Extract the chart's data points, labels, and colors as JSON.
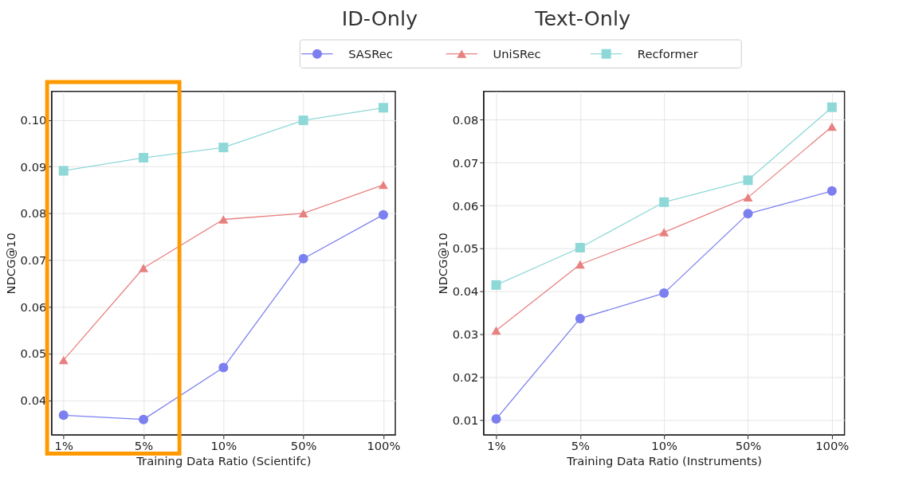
{
  "chart_data": [
    {
      "type": "line",
      "annotations": [
        "ID-Only"
      ],
      "categories": [
        "1%",
        "5%",
        "10%",
        "50%",
        "100%"
      ],
      "xlabel": "Training Data Ratio (Scientifc)",
      "ylabel": "NDCG@10",
      "series": [
        {
          "name": "SASRec",
          "color": "#7b7fef",
          "marker": "circle",
          "values": [
            0.0368,
            0.0359,
            0.047,
            0.0703,
            0.0797
          ]
        },
        {
          "name": "UniSRec",
          "color": "#e88080",
          "marker": "triangle",
          "values": [
            0.0486,
            0.0683,
            0.0787,
            0.08,
            0.0861
          ]
        },
        {
          "name": "Recformer",
          "color": "#8fd8d8",
          "marker": "square",
          "values": [
            0.0891,
            0.0919,
            0.0941,
            0.0999,
            0.1026
          ]
        }
      ],
      "ylim": [
        0.0326,
        0.1061
      ],
      "yticks": [
        0.04,
        0.05,
        0.06,
        0.07,
        0.08,
        0.09,
        {
          "value": 0.1,
          "label": "0.10"
        }
      ],
      "grid": true,
      "legend": "top"
    },
    {
      "type": "line",
      "annotations": [
        "Text-Only"
      ],
      "categories": [
        "1%",
        "5%",
        "10%",
        "50%",
        "100%"
      ],
      "xlabel": "Training Data Ratio (Instruments)",
      "ylabel": "NDCG@10",
      "series": [
        {
          "name": "SASRec",
          "color": "#7b7fef",
          "marker": "circle",
          "values": [
            0.0103,
            0.0337,
            0.0396,
            0.0581,
            0.0634
          ]
        },
        {
          "name": "UniSRec",
          "color": "#e88080",
          "marker": "triangle",
          "values": [
            0.0309,
            0.0463,
            0.0538,
            0.0619,
            0.0784
          ]
        },
        {
          "name": "Recformer",
          "color": "#8fd8d8",
          "marker": "square",
          "values": [
            0.0415,
            0.0502,
            0.0608,
            0.0659,
            0.0829
          ]
        }
      ],
      "ylim": [
        0.0066,
        0.0866
      ],
      "yticks": [
        0.01,
        0.02,
        0.03,
        0.04,
        0.05,
        0.06,
        0.07,
        0.08
      ],
      "grid": true,
      "legend": "top"
    }
  ]
}
